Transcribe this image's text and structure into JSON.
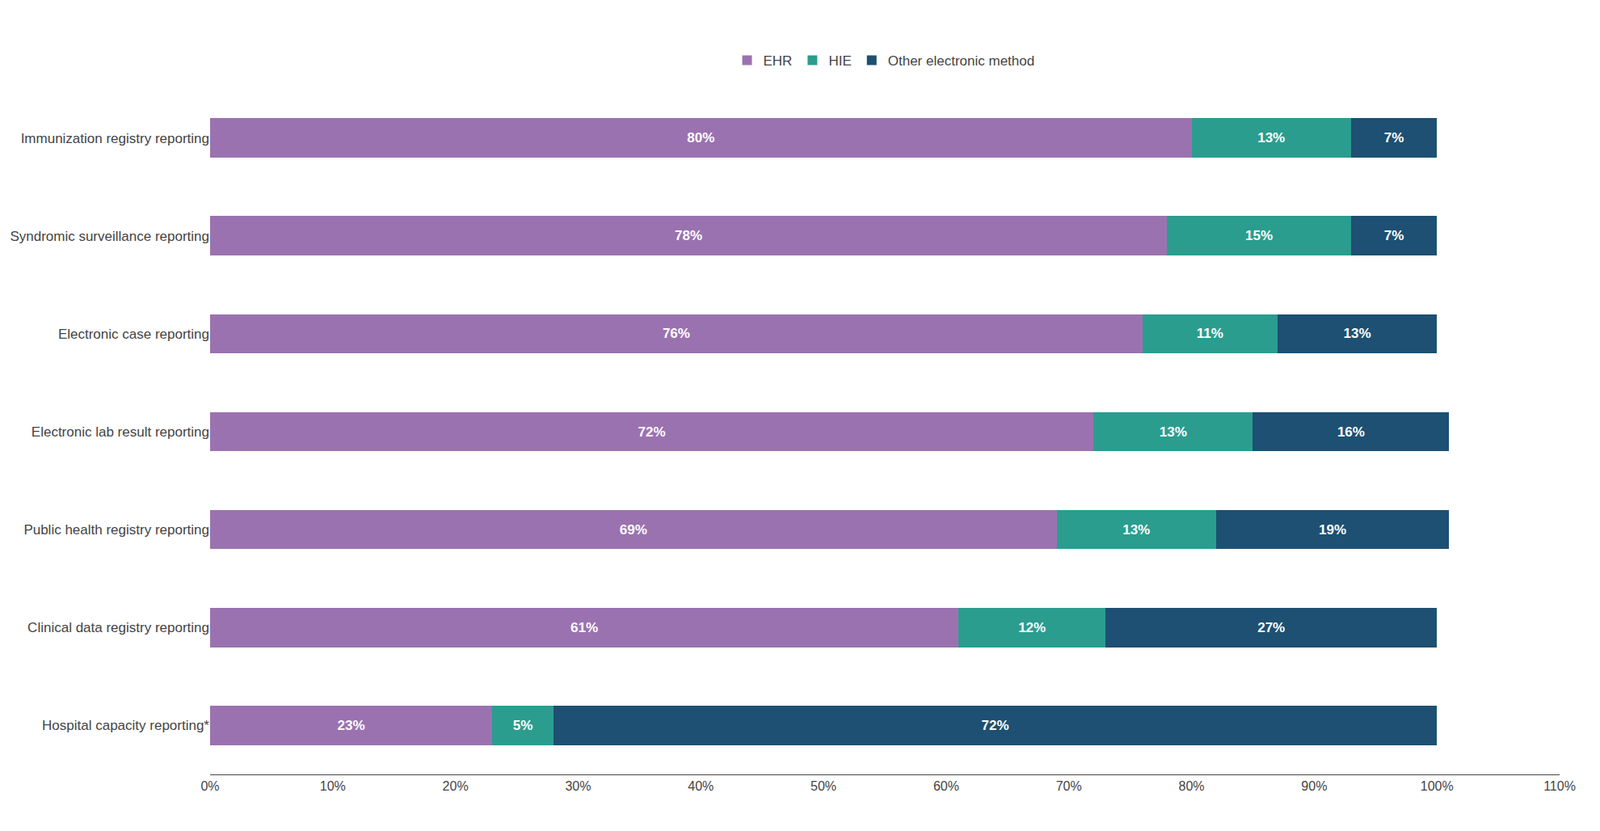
{
  "chart_data": {
    "type": "bar",
    "orientation": "horizontal",
    "stacked": true,
    "data_labels": true,
    "grid": false,
    "legend": "top",
    "categories": [
      "Immunization registry reporting",
      "Syndromic surveillance reporting",
      "Electronic case reporting",
      "Electronic lab result reporting",
      "Public health registry reporting",
      "Clinical data registry reporting",
      "Hospital capacity reporting*"
    ],
    "series": [
      {
        "name": "EHR",
        "color": "#9b72b0",
        "values": [
          80,
          78,
          76,
          72,
          69,
          61,
          23
        ],
        "value_labels": [
          "80%",
          "78%",
          "76%",
          "72%",
          "69%",
          "61%",
          "23%"
        ]
      },
      {
        "name": "HIE",
        "color": "#2a9d8f",
        "values": [
          13,
          15,
          11,
          13,
          13,
          12,
          5
        ],
        "value_labels": [
          "13%",
          "15%",
          "11%",
          "13%",
          "13%",
          "12%",
          "5%"
        ]
      },
      {
        "name": "Other electronic method",
        "color": "#1d5072",
        "values": [
          7,
          7,
          13,
          16,
          19,
          27,
          72
        ],
        "value_labels": [
          "7%",
          "7%",
          "13%",
          "16%",
          "19%",
          "27%",
          "72%"
        ]
      }
    ],
    "xlim": [
      0,
      110
    ],
    "xticks": [
      {
        "value": 0,
        "label": "0%"
      },
      {
        "value": 10,
        "label": "10%"
      },
      {
        "value": 20,
        "label": "20%"
      },
      {
        "value": 30,
        "label": "30%"
      },
      {
        "value": 40,
        "label": "40%"
      },
      {
        "value": 50,
        "label": "50%"
      },
      {
        "value": 60,
        "label": "60%"
      },
      {
        "value": 70,
        "label": "70%"
      },
      {
        "value": 80,
        "label": "80%"
      },
      {
        "value": 90,
        "label": "90%"
      },
      {
        "value": 100,
        "label": "100%"
      },
      {
        "value": 110,
        "label": "110%"
      }
    ]
  }
}
